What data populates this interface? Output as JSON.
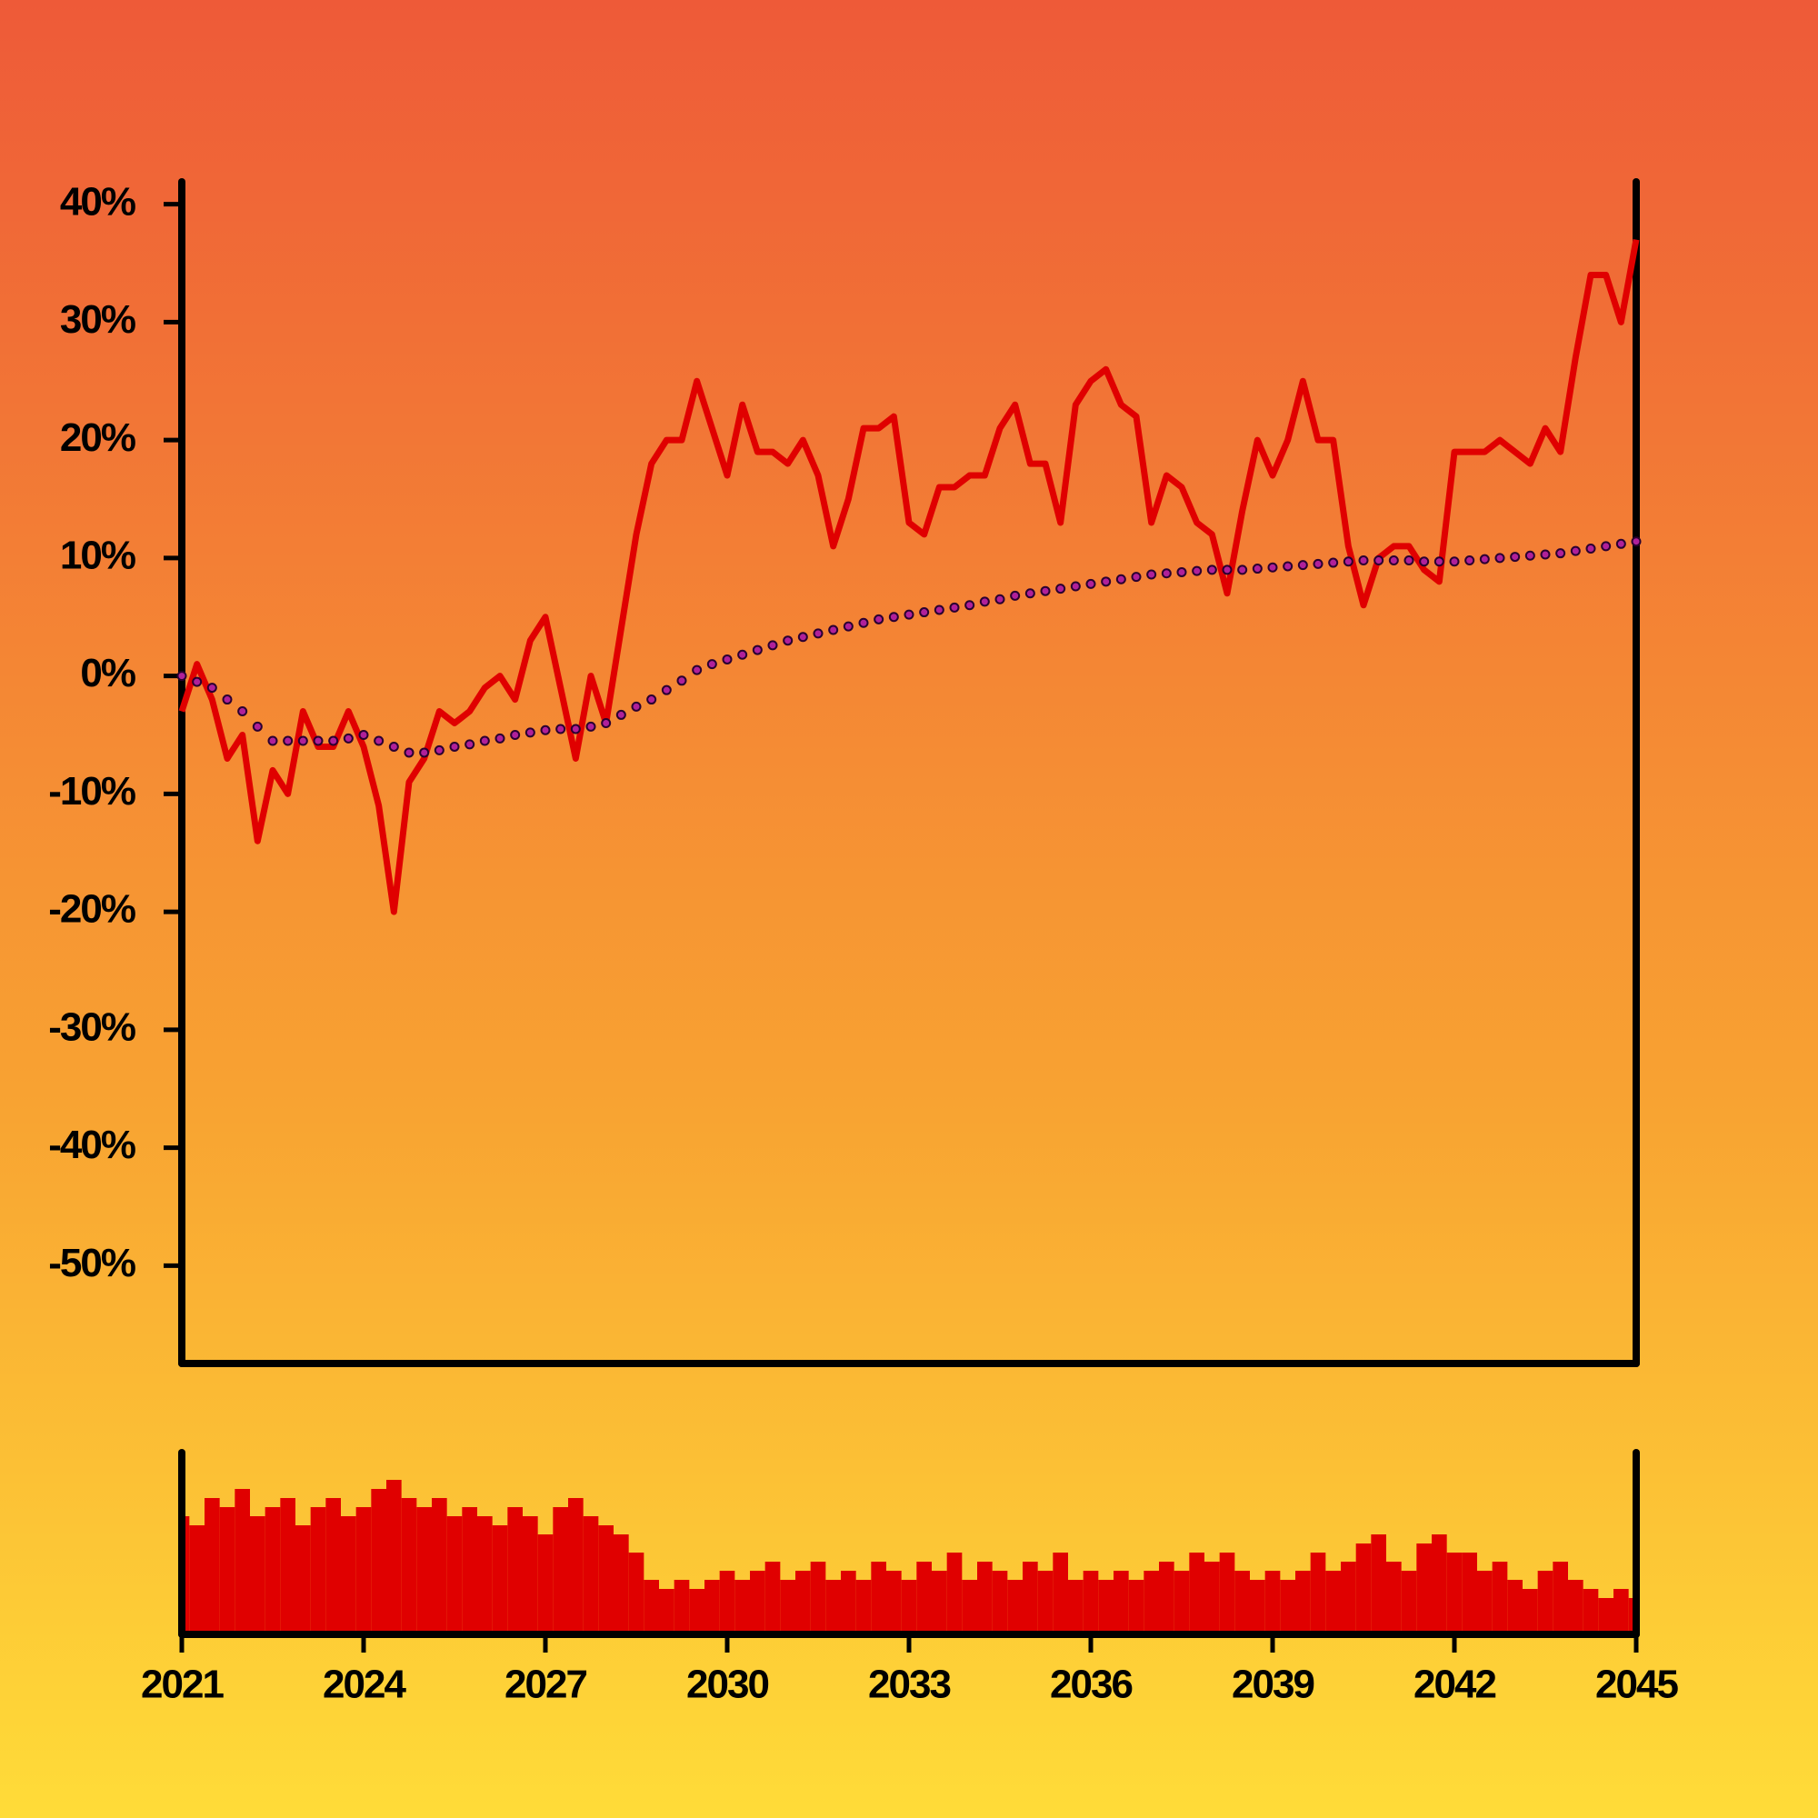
{
  "chart_data": {
    "type": "line",
    "x": [
      2021,
      2021.25,
      2021.5,
      2021.75,
      2022,
      2022.25,
      2022.5,
      2022.75,
      2023,
      2023.25,
      2023.5,
      2023.75,
      2024,
      2024.25,
      2024.5,
      2024.75,
      2025,
      2025.25,
      2025.5,
      2025.75,
      2026,
      2026.25,
      2026.5,
      2026.75,
      2027,
      2027.25,
      2027.5,
      2027.75,
      2028,
      2028.25,
      2028.5,
      2028.75,
      2029,
      2029.25,
      2029.5,
      2029.75,
      2030,
      2030.25,
      2030.5,
      2030.75,
      2031,
      2031.25,
      2031.5,
      2031.75,
      2032,
      2032.25,
      2032.5,
      2032.75,
      2033,
      2033.25,
      2033.5,
      2033.75,
      2034,
      2034.25,
      2034.5,
      2034.75,
      2035,
      2035.25,
      2035.5,
      2035.75,
      2036,
      2036.25,
      2036.5,
      2036.75,
      2037,
      2037.25,
      2037.5,
      2037.75,
      2038,
      2038.25,
      2038.5,
      2038.75,
      2039,
      2039.25,
      2039.5,
      2039.75,
      2040,
      2040.25,
      2040.5,
      2040.75,
      2041,
      2041.25,
      2041.5,
      2041.75,
      2042,
      2042.25,
      2042.5,
      2042.75,
      2043,
      2043.25,
      2043.5,
      2043.75,
      2044,
      2044.25,
      2044.5,
      2044.75,
      2045
    ],
    "series": [
      {
        "color": "#e00000",
        "values": [
          -3,
          1,
          -2,
          -7,
          -5,
          -14,
          -8,
          -10,
          -3,
          -6,
          -6,
          -3,
          -6,
          -11,
          -20,
          -9,
          -7,
          -3,
          -4,
          -3,
          -1,
          0,
          -2,
          3,
          5,
          -1,
          -7,
          0,
          -4,
          4,
          12,
          18,
          20,
          20,
          25,
          21,
          17,
          23,
          19,
          19,
          18,
          20,
          17,
          11,
          15,
          21,
          21,
          22,
          13,
          12,
          16,
          16,
          17,
          17,
          21,
          23,
          18,
          18,
          13,
          23,
          25,
          26,
          23,
          22,
          13,
          17,
          16,
          13,
          12,
          7,
          14,
          20,
          17,
          20,
          25,
          20,
          20,
          11,
          6,
          10,
          11,
          11,
          9,
          8,
          19,
          19,
          19,
          20,
          19,
          18,
          21,
          19,
          27,
          34,
          34,
          30,
          37
        ]
      },
      {
        "color": "#b0209a",
        "values": [
          0,
          -0.5,
          -1,
          -2,
          -3,
          -4.3,
          -5.5,
          -5.5,
          -5.5,
          -5.5,
          -5.5,
          -5.3,
          -5,
          -5.5,
          -6,
          -6.5,
          -6.5,
          -6.3,
          -6,
          -5.8,
          -5.5,
          -5.3,
          -5,
          -4.8,
          -4.6,
          -4.5,
          -4.5,
          -4.3,
          -4,
          -3.3,
          -2.6,
          -2,
          -1.2,
          -0.4,
          0.5,
          1,
          1.4,
          1.8,
          2.2,
          2.6,
          3,
          3.3,
          3.6,
          3.9,
          4.2,
          4.5,
          4.8,
          5,
          5.2,
          5.4,
          5.6,
          5.8,
          6,
          6.3,
          6.5,
          6.8,
          7,
          7.2,
          7.4,
          7.6,
          7.8,
          8,
          8.2,
          8.4,
          8.6,
          8.7,
          8.8,
          8.9,
          9,
          9,
          9,
          9.1,
          9.2,
          9.3,
          9.4,
          9.5,
          9.6,
          9.7,
          9.8,
          9.8,
          9.8,
          9.8,
          9.7,
          9.7,
          9.7,
          9.8,
          9.9,
          10,
          10.1,
          10.2,
          10.3,
          10.4,
          10.6,
          10.8,
          11,
          11.2,
          11.4
        ]
      }
    ],
    "volume": {
      "color": "#e00000",
      "ylim": [
        0,
        100
      ],
      "values": [
        65,
        60,
        75,
        70,
        80,
        65,
        70,
        75,
        60,
        70,
        75,
        65,
        70,
        80,
        85,
        75,
        70,
        75,
        65,
        70,
        65,
        60,
        70,
        65,
        55,
        70,
        75,
        65,
        60,
        55,
        45,
        30,
        25,
        30,
        25,
        30,
        35,
        30,
        35,
        40,
        30,
        35,
        40,
        30,
        35,
        30,
        40,
        35,
        30,
        40,
        35,
        45,
        30,
        40,
        35,
        30,
        40,
        35,
        45,
        30,
        35,
        30,
        35,
        30,
        35,
        40,
        35,
        45,
        40,
        45,
        35,
        30,
        35,
        30,
        35,
        45,
        35,
        40,
        50,
        55,
        40,
        35,
        50,
        55,
        45,
        45,
        35,
        40,
        30,
        25,
        35,
        40,
        30,
        25,
        20,
        25,
        20
      ]
    },
    "xlim": [
      2021,
      2045
    ],
    "xticks": [
      2021,
      2024,
      2027,
      2030,
      2033,
      2036,
      2039,
      2042,
      2045
    ],
    "ylim": [
      -58.3,
      41.9
    ],
    "yticks": [
      {
        "value": 40,
        "label": "40%"
      },
      {
        "value": 30,
        "label": "30%"
      },
      {
        "value": 20,
        "label": "20%"
      },
      {
        "value": 10,
        "label": "10%"
      },
      {
        "value": 0,
        "label": "0%"
      },
      {
        "value": -10,
        "label": "-10%"
      },
      {
        "value": -20,
        "label": "-20%"
      },
      {
        "value": -30,
        "label": "-30%"
      },
      {
        "value": -40,
        "label": "-40%"
      },
      {
        "value": -50,
        "label": "-50%"
      }
    ]
  }
}
